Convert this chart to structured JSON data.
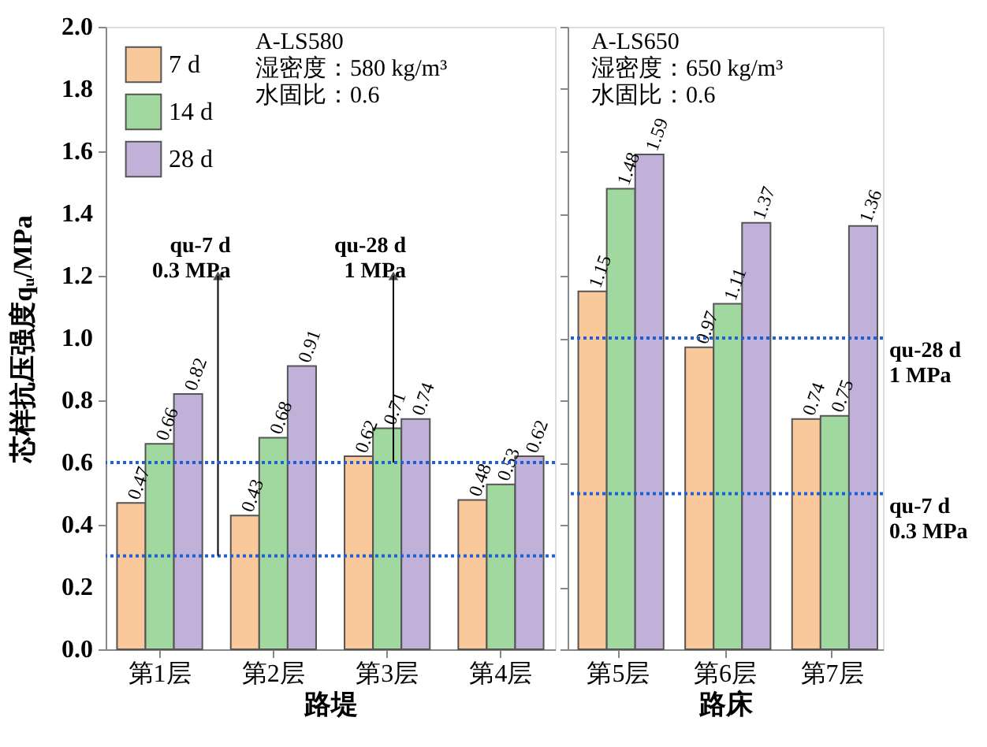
{
  "chart_data": [
    {
      "type": "bar",
      "categories": [
        "第1层",
        "第2层",
        "第3层",
        "第4层"
      ],
      "xlabel": "路堤",
      "ylabel": "芯样抗压强度qᵤ/MPa",
      "ylim": [
        0,
        2.0
      ],
      "yticks": [
        {
          "value": 0,
          "label": "0.0"
        },
        0.2,
        0.4,
        0.6,
        0.8,
        {
          "value": 1.0,
          "label": "1.0"
        },
        1.2,
        1.4,
        1.6,
        1.8,
        {
          "value": 2.0,
          "label": "2.0"
        }
      ],
      "grid": false,
      "legend": "top left",
      "data_labels": true,
      "series": [
        {
          "name": "7 d",
          "color": "#f9c89b",
          "values": [
            0.47,
            0.43,
            0.62,
            0.48
          ]
        },
        {
          "name": "14 d",
          "color": "#a0d8a0",
          "values": [
            0.66,
            0.68,
            0.71,
            0.53
          ]
        },
        {
          "name": "28 d",
          "color": "#c1b1d9",
          "values": [
            0.82,
            0.91,
            0.74,
            0.62
          ]
        }
      ],
      "ref_lines": [
        {
          "axis": "y",
          "value": 0.3,
          "label": "qu-7 d\n0.3 MPa",
          "color": "#1f5fd6",
          "line_style": "dotted"
        },
        {
          "axis": "y",
          "value": 0.6,
          "label": "qu-28 d\n1 MPa",
          "color": "#1f5fd6",
          "line_style": "dotted"
        }
      ],
      "annotations": [
        "A-LS580\n湿密度：580 kg/m³\n水固比：0.6"
      ]
    },
    {
      "type": "bar",
      "categories": [
        "第5层",
        "第6层",
        "第7层"
      ],
      "xlabel": "路床",
      "ylim": [
        0,
        2.0
      ],
      "yticks": [
        0,
        0.2,
        0.4,
        0.6,
        0.8,
        1.0,
        1.2,
        1.4,
        1.6,
        1.8,
        2.0
      ],
      "grid": false,
      "tick_labels": "x",
      "data_labels": true,
      "series": [
        {
          "color": "#f9c89b",
          "values": [
            1.15,
            0.97,
            0.74
          ]
        },
        {
          "color": "#a0d8a0",
          "values": [
            1.48,
            1.11,
            0.75
          ]
        },
        {
          "color": "#c1b1d9",
          "values": [
            1.59,
            1.37,
            1.36
          ]
        }
      ],
      "ref_lines": [
        {
          "axis": "y",
          "value": 1.0,
          "label": "qu-28 d\n1 MPa",
          "color": "#1f5fd6",
          "line_style": "dotted"
        },
        {
          "axis": "y",
          "value": 0.5,
          "label": "qu-7 d\n0.3 MPa",
          "color": "#1f5fd6",
          "line_style": "dotted"
        }
      ],
      "annotations": [
        "A-LS650\n湿密度：650 kg/m³\n水固比：0.6"
      ]
    }
  ]
}
